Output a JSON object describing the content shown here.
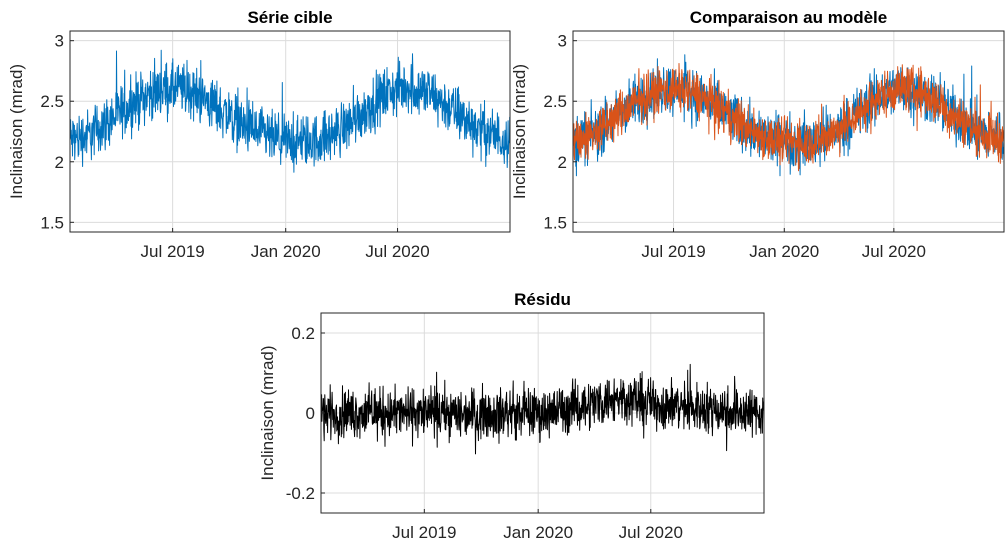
{
  "chart_data": [
    {
      "type": "line",
      "title": "Série cible",
      "ylabel": "Inclinaison (mrad)",
      "xlabel": "",
      "xlim": [
        "2019-01-15",
        "2020-12-31"
      ],
      "ylim": [
        1.42,
        3.08
      ],
      "yticks": [
        "1.5",
        "2",
        "2.5",
        "3"
      ],
      "ytick_values": [
        1.5,
        2,
        2.5,
        3
      ],
      "xticks": [
        "Jul 2019",
        "Jan 2020",
        "Jul 2020"
      ],
      "xtick_values": [
        "2019-07-01",
        "2020-01-01",
        "2020-07-01"
      ],
      "grid": true,
      "series": [
        {
          "color": "#0072BD",
          "x": [
            "2019-01-15",
            "2019-02-15",
            "2019-03-15",
            "2019-04-15",
            "2019-05-15",
            "2019-06-15",
            "2019-07-15",
            "2019-08-15",
            "2019-09-15",
            "2019-10-15",
            "2019-11-15",
            "2019-12-15",
            "2020-01-15",
            "2020-02-15",
            "2020-03-15",
            "2020-04-15",
            "2020-05-15",
            "2020-06-15",
            "2020-07-15",
            "2020-08-15",
            "2020-09-15",
            "2020-10-15",
            "2020-11-15",
            "2020-12-15",
            "2020-12-31"
          ],
          "values": [
            2.18,
            2.22,
            2.32,
            2.44,
            2.54,
            2.6,
            2.6,
            2.54,
            2.44,
            2.33,
            2.24,
            2.18,
            2.16,
            2.17,
            2.22,
            2.32,
            2.45,
            2.57,
            2.62,
            2.58,
            2.48,
            2.36,
            2.26,
            2.2,
            2.2
          ],
          "spread": 0.32
        }
      ]
    },
    {
      "type": "line",
      "title": "Comparaison au modèle",
      "ylabel": "Inclinaison (mrad)",
      "xlabel": "",
      "xlim": [
        "2019-01-15",
        "2020-12-31"
      ],
      "ylim": [
        1.42,
        3.08
      ],
      "yticks": [
        "1.5",
        "2",
        "2.5",
        "3"
      ],
      "ytick_values": [
        1.5,
        2,
        2.5,
        3
      ],
      "xticks": [
        "Jul 2019",
        "Jan 2020",
        "Jul 2020"
      ],
      "xtick_values": [
        "2019-07-01",
        "2020-01-01",
        "2020-07-01"
      ],
      "grid": true,
      "series": [
        {
          "color": "#0072BD",
          "x": [
            "2019-01-15",
            "2019-02-15",
            "2019-03-15",
            "2019-04-15",
            "2019-05-15",
            "2019-06-15",
            "2019-07-15",
            "2019-08-15",
            "2019-09-15",
            "2019-10-15",
            "2019-11-15",
            "2019-12-15",
            "2020-01-15",
            "2020-02-15",
            "2020-03-15",
            "2020-04-15",
            "2020-05-15",
            "2020-06-15",
            "2020-07-15",
            "2020-08-15",
            "2020-09-15",
            "2020-10-15",
            "2020-11-15",
            "2020-12-15",
            "2020-12-31"
          ],
          "values": [
            2.18,
            2.22,
            2.32,
            2.44,
            2.54,
            2.6,
            2.6,
            2.54,
            2.44,
            2.33,
            2.24,
            2.18,
            2.16,
            2.17,
            2.22,
            2.32,
            2.45,
            2.57,
            2.62,
            2.58,
            2.48,
            2.36,
            2.26,
            2.2,
            2.2
          ],
          "spread": 0.32
        },
        {
          "color": "#D95319",
          "x": [
            "2019-01-15",
            "2019-02-15",
            "2019-03-15",
            "2019-04-15",
            "2019-05-15",
            "2019-06-15",
            "2019-07-15",
            "2019-08-15",
            "2019-09-15",
            "2019-10-15",
            "2019-11-15",
            "2019-12-15",
            "2020-01-15",
            "2020-02-15",
            "2020-03-15",
            "2020-04-15",
            "2020-05-15",
            "2020-06-15",
            "2020-07-15",
            "2020-08-15",
            "2020-09-15",
            "2020-10-15",
            "2020-11-15",
            "2020-12-15",
            "2020-12-31"
          ],
          "values": [
            2.18,
            2.22,
            2.32,
            2.44,
            2.54,
            2.6,
            2.6,
            2.54,
            2.44,
            2.33,
            2.24,
            2.18,
            2.16,
            2.17,
            2.22,
            2.32,
            2.45,
            2.57,
            2.62,
            2.58,
            2.48,
            2.36,
            2.26,
            2.2,
            2.2
          ],
          "spread": 0.28
        }
      ]
    },
    {
      "type": "line",
      "title": "Résidu",
      "ylabel": "Inclinaison (mrad)",
      "xlabel": "",
      "xlim": [
        "2019-01-15",
        "2020-12-31"
      ],
      "ylim": [
        -0.25,
        0.25
      ],
      "yticks": [
        "-0.2",
        "0",
        "0.2"
      ],
      "ytick_values": [
        -0.2,
        0,
        0.2
      ],
      "xticks": [
        "Jul 2019",
        "Jan 2020",
        "Jul 2020"
      ],
      "xtick_values": [
        "2019-07-01",
        "2020-01-01",
        "2020-07-01"
      ],
      "grid": true,
      "series": [
        {
          "color": "#000000",
          "x": [
            "2019-01-15",
            "2019-04-15",
            "2019-07-15",
            "2019-10-15",
            "2020-01-15",
            "2020-04-15",
            "2020-05-15",
            "2020-07-15",
            "2020-10-15",
            "2020-12-31"
          ],
          "values": [
            0,
            0,
            0,
            0,
            0,
            0.03,
            0.04,
            0.02,
            0.01,
            0
          ],
          "spread": 0.09
        }
      ]
    }
  ]
}
